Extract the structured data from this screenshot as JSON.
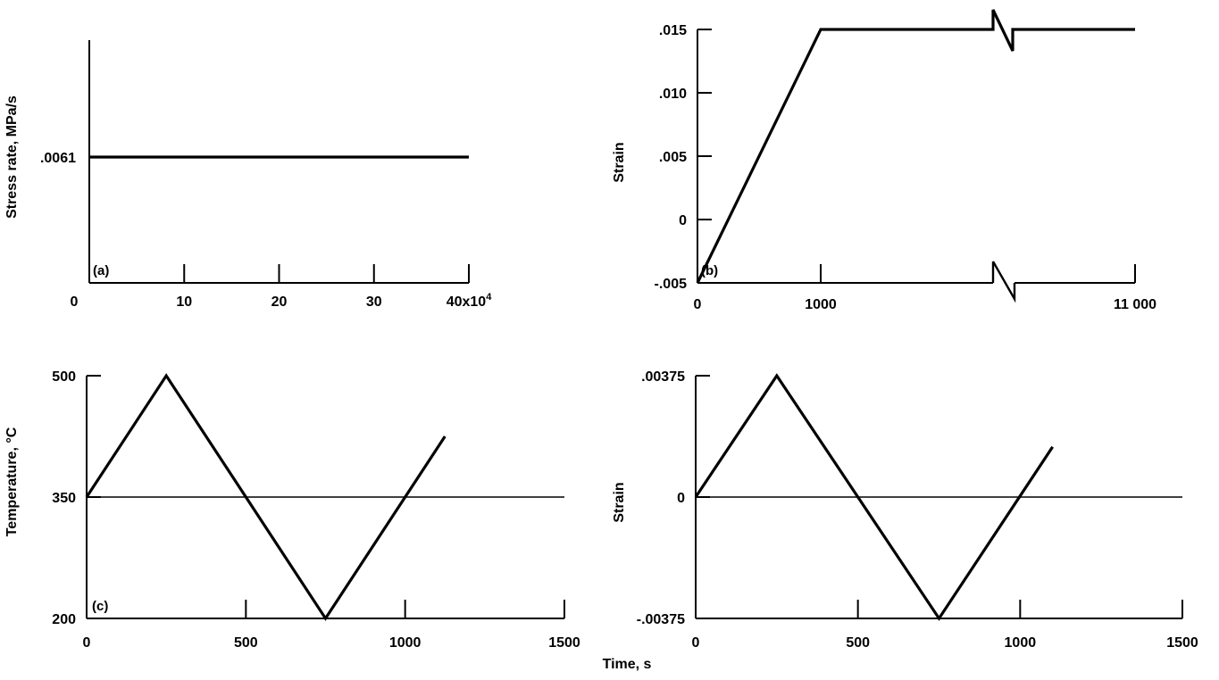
{
  "chart_data": [
    {
      "id": "a",
      "type": "line",
      "panel_tag": "(a)",
      "xlabel": "Time, s",
      "ylabel": "Stress rate, MPa/s",
      "xlim": [
        0,
        40
      ],
      "x_ticks": [
        {
          "value": 0,
          "label": "0"
        },
        {
          "value": 10,
          "label": "10"
        },
        {
          "value": 20,
          "label": "20"
        },
        {
          "value": 30,
          "label": "30"
        },
        {
          "value": 40,
          "label": "40x10",
          "exponent": "4"
        }
      ],
      "y_ticks": [
        {
          "value": 0.0061,
          "label": ".0061"
        }
      ],
      "series": [
        {
          "x": [
            0,
            40
          ],
          "y": [
            0.0061,
            0.0061
          ]
        }
      ]
    },
    {
      "id": "b",
      "type": "line",
      "panel_tag": "(b)",
      "xlabel": "Time, s",
      "ylabel": "Strain",
      "xlim": [
        0,
        11000
      ],
      "ylim": [
        -0.005,
        0.015
      ],
      "axis_break": true,
      "x_ticks": [
        {
          "value": 0,
          "label": "0"
        },
        {
          "value": 1000,
          "label": "1000"
        },
        {
          "value": 11000,
          "label": "11 000"
        }
      ],
      "y_ticks": [
        {
          "value": -0.005,
          "label": "-.005"
        },
        {
          "value": 0,
          "label": "0"
        },
        {
          "value": 0.005,
          "label": ".005"
        },
        {
          "value": 0.01,
          "label": ".010"
        },
        {
          "value": 0.015,
          "label": ".015"
        }
      ],
      "series": [
        {
          "x": [
            0,
            1000,
            11000
          ],
          "y": [
            -0.005,
            0.015,
            0.015
          ]
        }
      ]
    },
    {
      "id": "c",
      "type": "line",
      "panel_tag": "(c)",
      "xlabel": "",
      "ylabel": "Temperature, °C",
      "xlim": [
        0,
        1500
      ],
      "ylim": [
        200,
        500
      ],
      "x_ticks": [
        {
          "value": 0,
          "label": "0"
        },
        {
          "value": 500,
          "label": "500"
        },
        {
          "value": 1000,
          "label": "1000"
        },
        {
          "value": 1500,
          "label": "1500"
        }
      ],
      "y_ticks": [
        {
          "value": 200,
          "label": "200"
        },
        {
          "value": 350,
          "label": "350"
        },
        {
          "value": 500,
          "label": "500"
        }
      ],
      "reference_line": {
        "y": 350
      },
      "series": [
        {
          "x": [
            0,
            250,
            750,
            1125
          ],
          "y": [
            350,
            500,
            200,
            425
          ]
        }
      ]
    },
    {
      "id": "d",
      "type": "line",
      "panel_tag": "",
      "xlabel": "",
      "ylabel": "Strain",
      "xlim": [
        0,
        1500
      ],
      "ylim": [
        -0.00375,
        0.00375
      ],
      "x_ticks": [
        {
          "value": 0,
          "label": "0"
        },
        {
          "value": 500,
          "label": "500"
        },
        {
          "value": 1000,
          "label": "1000"
        },
        {
          "value": 1500,
          "label": "1500"
        }
      ],
      "y_ticks": [
        {
          "value": -0.00375,
          "label": "-.00375"
        },
        {
          "value": 0,
          "label": "0"
        },
        {
          "value": 0.00375,
          "label": ".00375"
        }
      ],
      "reference_line": {
        "y": 0
      },
      "series": [
        {
          "x": [
            0,
            250,
            750,
            1100
          ],
          "y": [
            0,
            0.00375,
            -0.00375,
            0.00155
          ]
        }
      ]
    }
  ],
  "shared_xlabel": "Time, s"
}
